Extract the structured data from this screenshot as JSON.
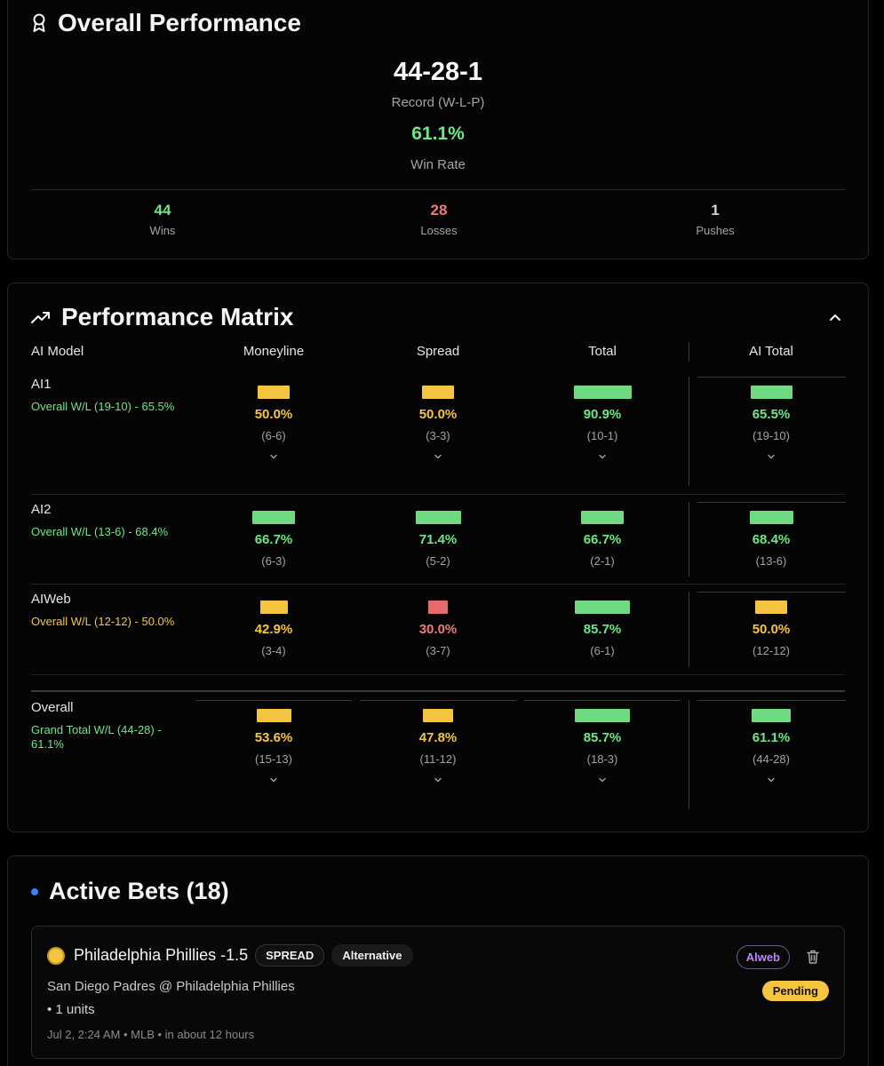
{
  "overall": {
    "title": "Overall Performance",
    "record": "44-28-1",
    "record_label": "Record (W-L-P)",
    "win_rate": "61.1%",
    "win_rate_label": "Win Rate",
    "stats": {
      "wins": {
        "value": "44",
        "label": "Wins"
      },
      "losses": {
        "value": "28",
        "label": "Losses"
      },
      "pushes": {
        "value": "1",
        "label": "Pushes"
      }
    },
    "colors": {
      "win": "#6ee787",
      "loss": "#f07a7a",
      "neutral": "#f5c542"
    }
  },
  "matrix": {
    "title": "Performance Matrix",
    "headers": {
      "model": "AI Model",
      "moneyline": "Moneyline",
      "spread": "Spread",
      "total": "Total",
      "ai_total": "AI Total"
    },
    "rows": [
      {
        "name": "AI1",
        "sub": "Overall W/L (19-10) - 65.5%",
        "cells": [
          {
            "pct": "50.0%",
            "rec": "(6-6)",
            "level": 0.5
          },
          {
            "pct": "50.0%",
            "rec": "(3-3)",
            "level": 0.5
          },
          {
            "pct": "90.9%",
            "rec": "(10-1)",
            "level": 0.909
          },
          {
            "pct": "65.5%",
            "rec": "(19-10)",
            "level": 0.655
          }
        ]
      },
      {
        "name": "AI2",
        "sub": "Overall W/L (13-6) - 68.4%",
        "cells": [
          {
            "pct": "66.7%",
            "rec": "(6-3)",
            "level": 0.667
          },
          {
            "pct": "71.4%",
            "rec": "(5-2)",
            "level": 0.714
          },
          {
            "pct": "66.7%",
            "rec": "(2-1)",
            "level": 0.667
          },
          {
            "pct": "68.4%",
            "rec": "(13-6)",
            "level": 0.684
          }
        ]
      },
      {
        "name": "AIWeb",
        "sub": "Overall W/L (12-12) - 50.0%",
        "cells": [
          {
            "pct": "42.9%",
            "rec": "(3-4)",
            "level": 0.429
          },
          {
            "pct": "30.0%",
            "rec": "(3-7)",
            "level": 0.3
          },
          {
            "pct": "85.7%",
            "rec": "(6-1)",
            "level": 0.857
          },
          {
            "pct": "50.0%",
            "rec": "(12-12)",
            "level": 0.5
          }
        ]
      },
      {
        "name": "Overall",
        "sub": "Grand Total W/L (44-28) - 61.1%",
        "cells": [
          {
            "pct": "53.6%",
            "rec": "(15-13)",
            "level": 0.536
          },
          {
            "pct": "47.8%",
            "rec": "(11-12)",
            "level": 0.478
          },
          {
            "pct": "85.7%",
            "rec": "(18-3)",
            "level": 0.857
          },
          {
            "pct": "61.1%",
            "rec": "(44-28)",
            "level": 0.611
          }
        ]
      }
    ]
  },
  "bets": {
    "title": "Active Bets (18)",
    "items": [
      {
        "title": "Philadelphia Phillies -1.5",
        "type": "SPREAD",
        "variant": "Alternative",
        "matchup": "San Diego Padres @ Philadelphia Phillies",
        "units": "• 1 units",
        "meta": "Jul 2, 2:24 AM • MLB • in about 12 hours",
        "model": "Alweb",
        "status": "Pending"
      }
    ]
  }
}
